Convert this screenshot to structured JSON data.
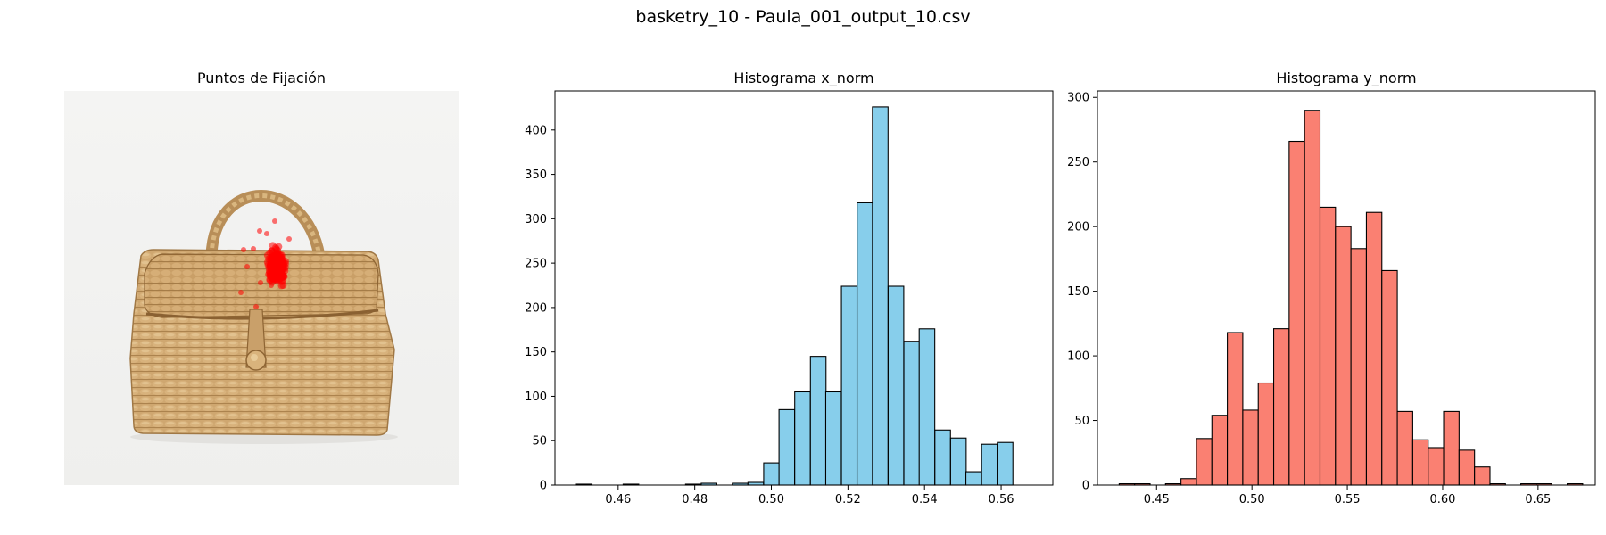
{
  "suptitle": "basketry_10 - Paula_001_output_10.csv",
  "colors": {
    "x_bars": "#87ceeb",
    "y_bars": "#fa8072",
    "fixation_points": "#ff0000",
    "bar_edge": "#000000"
  },
  "fixation_panel": {
    "title": "Puntos de Fijación",
    "background_image": "woven straw basket bag with handle and button clasp",
    "axes_visible": false
  },
  "chart_data": [
    {
      "type": "bar",
      "title": "Histograma x_norm",
      "xlabel": "",
      "ylabel": "",
      "xlim": [
        0.4435,
        0.5735
      ],
      "ylim": [
        0,
        444
      ],
      "xticks": [
        "0.46",
        "0.48",
        "0.50",
        "0.52",
        "0.54",
        "0.56"
      ],
      "yticks": [
        "0",
        "50",
        "100",
        "150",
        "200",
        "250",
        "300",
        "350",
        "400"
      ],
      "bin_width": 0.00407,
      "bin_starts": [
        0.4491,
        0.4532,
        0.4573,
        0.4613,
        0.4654,
        0.4695,
        0.4735,
        0.4776,
        0.4817,
        0.4857,
        0.4898,
        0.4939,
        0.498,
        0.502,
        0.5061,
        0.5102,
        0.5142,
        0.5183,
        0.5224,
        0.5264,
        0.5305,
        0.5346,
        0.5386,
        0.5427,
        0.5468,
        0.5508,
        0.5549,
        0.559,
        0.563,
        0.5671
      ],
      "values": [
        1,
        0,
        0,
        1,
        0,
        0,
        0,
        1,
        2,
        0,
        2,
        3,
        25,
        85,
        105,
        145,
        105,
        224,
        318,
        426,
        224,
        162,
        176,
        62,
        53,
        15,
        46,
        48,
        0,
        0
      ]
    },
    {
      "type": "bar",
      "title": "Histograma y_norm",
      "xlabel": "",
      "ylabel": "",
      "xlim": [
        0.419,
        0.68
      ],
      "ylim": [
        0,
        305
      ],
      "xticks": [
        "0.45",
        "0.50",
        "0.55",
        "0.60",
        "0.65"
      ],
      "yticks": [
        "0",
        "50",
        "100",
        "150",
        "200",
        "250",
        "300"
      ],
      "bin_width": 0.0081,
      "bin_starts": [
        0.4304,
        0.4385,
        0.4466,
        0.4547,
        0.4628,
        0.4709,
        0.479,
        0.4871,
        0.4952,
        0.5033,
        0.5114,
        0.5195,
        0.5276,
        0.5357,
        0.5438,
        0.5519,
        0.56,
        0.5681,
        0.5762,
        0.5843,
        0.5924,
        0.6005,
        0.6086,
        0.6167,
        0.6248,
        0.6329,
        0.641,
        0.6491,
        0.6572,
        0.6653
      ],
      "values": [
        1,
        1,
        0,
        1,
        5,
        36,
        54,
        118,
        58,
        79,
        121,
        266,
        290,
        215,
        200,
        183,
        211,
        166,
        57,
        35,
        29,
        57,
        27,
        14,
        1,
        0,
        1,
        1,
        0,
        1
      ]
    }
  ]
}
